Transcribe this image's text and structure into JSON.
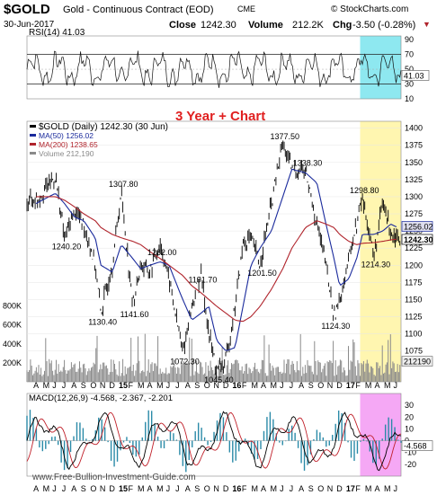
{
  "header": {
    "symbol": "$GOLD",
    "name": "Gold - Continuous Contract (EOD)",
    "exchange": "CME",
    "site": "© StockCharts.com",
    "date": "30-Jun-2017",
    "close_label": "Close",
    "close_value": "1242.30",
    "volume_label": "Volume",
    "volume_value": "212.2K",
    "chg_label": "Chg",
    "chg_value": "-3.50 (-0.28%)"
  },
  "watermark": "www.Free-Bullion-Investment-Guide.com",
  "colors": {
    "price": "#000000",
    "ma50": "#1a2a9c",
    "ma200": "#b0242c",
    "volume": "#8a8a8a",
    "rsi_highlight": "#8ee8f0",
    "price_highlight": "#fff6b0",
    "macd_highlight": "#f5a8f5",
    "annotation": "#e02020",
    "macd_hist": "#2a8aa8"
  },
  "chart_data": [
    {
      "type": "line",
      "panel": "rsi",
      "label": "RSI(14) 41.03",
      "current_value": "41.03",
      "ylim": [
        10,
        95
      ],
      "yticks": [
        90,
        70,
        50,
        30,
        10
      ],
      "reference_lines": [
        70,
        30
      ]
    },
    {
      "type": "line",
      "panel": "price",
      "title": "3 Year + Chart",
      "legend": [
        {
          "label": "$GOLD (Daily) 1242.30 (30 Jun)"
        },
        {
          "label": "MA(50) 1256.02"
        },
        {
          "label": "MA(200) 1238.65"
        },
        {
          "label": "Volume 212,190"
        }
      ],
      "ylim": [
        1030,
        1410
      ],
      "yticks": [
        1400,
        1375,
        1350,
        1325,
        1300,
        1275,
        1250,
        1225,
        1200,
        1175,
        1150,
        1125,
        1100,
        1075
      ],
      "last_price_tags": [
        "1256.02",
        "1242.30"
      ],
      "annotations": [
        {
          "x": 2014.58,
          "y": 1240.2,
          "label": "1240.20"
        },
        {
          "x": 2014.9,
          "y": 1130.4,
          "label": "1130.40"
        },
        {
          "x": 2015.08,
          "y": 1307.8,
          "label": "1307.80"
        },
        {
          "x": 2015.18,
          "y": 1141.6,
          "label": "1141.60"
        },
        {
          "x": 2015.42,
          "y": 1232.0,
          "label": "1232.00"
        },
        {
          "x": 2015.62,
          "y": 1072.3,
          "label": "1072.30"
        },
        {
          "x": 2015.78,
          "y": 1191.7,
          "label": "1191.70"
        },
        {
          "x": 2015.92,
          "y": 1045.4,
          "label": "1045.40"
        },
        {
          "x": 2016.3,
          "y": 1201.5,
          "label": "1201.50"
        },
        {
          "x": 2016.5,
          "y": 1377.5,
          "label": "1377.50"
        },
        {
          "x": 2016.7,
          "y": 1338.3,
          "label": "1338.30"
        },
        {
          "x": 2016.95,
          "y": 1124.3,
          "label": "1124.30"
        },
        {
          "x": 2017.2,
          "y": 1298.8,
          "label": "1298.80"
        },
        {
          "x": 2017.3,
          "y": 1214.3,
          "label": "1214.30"
        }
      ],
      "x": [
        2014.33,
        2014.5,
        2014.58,
        2014.67,
        2014.75,
        2014.85,
        2014.9,
        2015.0,
        2015.08,
        2015.18,
        2015.25,
        2015.33,
        2015.42,
        2015.5,
        2015.62,
        2015.7,
        2015.78,
        2015.85,
        2015.92,
        2016.0,
        2016.08,
        2016.15,
        2016.22,
        2016.3,
        2016.4,
        2016.5,
        2016.58,
        2016.7,
        2016.8,
        2016.88,
        2016.95,
        2017.0,
        2017.08,
        2017.15,
        2017.2,
        2017.3,
        2017.38,
        2017.45,
        2017.5
      ],
      "series": [
        {
          "values": [
            1295,
            1330,
            1240,
            1280,
            1260,
            1200,
            1130,
            1200,
            1307,
            1141,
            1200,
            1190,
            1232,
            1180,
            1072,
            1140,
            1191,
            1100,
            1045,
            1060,
            1140,
            1230,
            1240,
            1201,
            1290,
            1377,
            1340,
            1338,
            1260,
            1200,
            1124,
            1150,
            1210,
            1260,
            1298,
            1214,
            1290,
            1250,
            1242
          ]
        },
        {
          "name": "MA(50)",
          "values": [
            1290,
            1305,
            1290,
            1270,
            1265,
            1240,
            1200,
            1190,
            1230,
            1210,
            1195,
            1200,
            1205,
            1200,
            1150,
            1120,
            1130,
            1140,
            1090,
            1075,
            1080,
            1140,
            1200,
            1225,
            1250,
            1300,
            1340,
            1335,
            1320,
            1260,
            1210,
            1170,
            1180,
            1210,
            1245,
            1245,
            1250,
            1260,
            1256
          ]
        },
        {
          "name": "MA(200)",
          "values": [
            1300,
            1300,
            1295,
            1285,
            1275,
            1265,
            1255,
            1245,
            1240,
            1235,
            1230,
            1220,
            1210,
            1200,
            1185,
            1170,
            1160,
            1150,
            1140,
            1130,
            1120,
            1118,
            1125,
            1140,
            1165,
            1195,
            1225,
            1255,
            1265,
            1260,
            1255,
            1245,
            1235,
            1230,
            1232,
            1233,
            1235,
            1237,
            1238
          ]
        }
      ],
      "volume_axis": {
        "ylim": [
          0,
          900000
        ],
        "yticks_labels": [
          "800K",
          "600K",
          "400K",
          "200K"
        ],
        "current": "212190"
      }
    },
    {
      "type": "line",
      "panel": "macd",
      "label": "MACD(12,26,9) -4.568, -2.367, -2.201",
      "current_value": "-4.568",
      "ylim": [
        -30,
        40
      ],
      "yticks": [
        30,
        20,
        10,
        0,
        -10,
        -20
      ]
    }
  ],
  "x_axis": {
    "months": [
      "A",
      "M",
      "J",
      "J",
      "A",
      "S",
      "O",
      "N",
      "D",
      "15",
      "F",
      "M",
      "A",
      "M",
      "J",
      "J",
      "A",
      "S",
      "O",
      "N",
      "D",
      "16",
      "F",
      "M",
      "A",
      "M",
      "J",
      "J",
      "A",
      "S",
      "O",
      "N",
      "D",
      "17",
      "F",
      "M",
      "A",
      "M",
      "J"
    ]
  }
}
